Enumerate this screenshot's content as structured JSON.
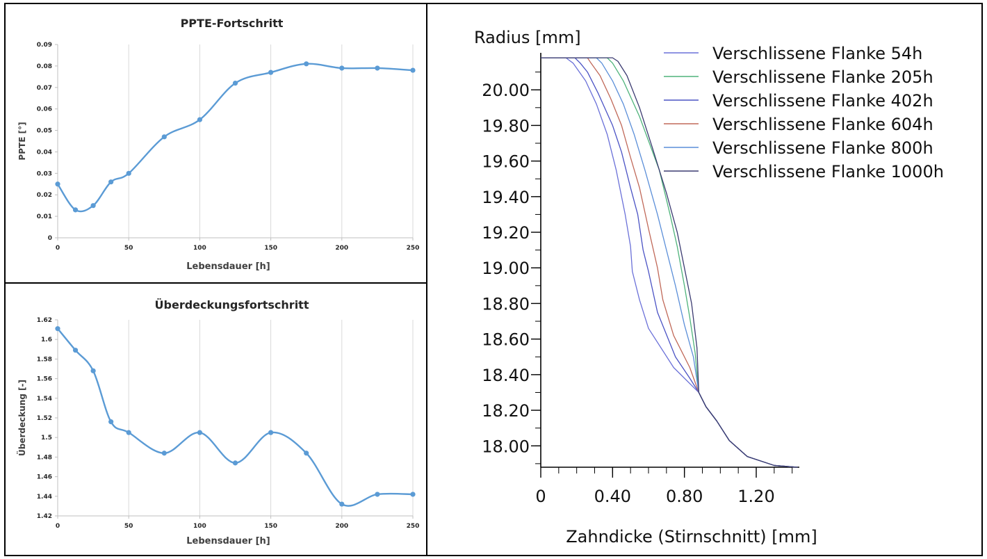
{
  "chart_data": [
    {
      "type": "line",
      "title": "PPTE-Fortschritt",
      "xlabel": "Lebensdauer [h]",
      "ylabel": "PPTE [°]",
      "xlim": [
        0,
        250
      ],
      "ylim": [
        0,
        0.09
      ],
      "x_ticks": [
        0,
        50,
        100,
        150,
        200,
        250
      ],
      "x_tick_labels": [
        "0",
        "50",
        "100",
        "150",
        "200",
        "250"
      ],
      "y_ticks": [
        0,
        0.01,
        0.02,
        0.03,
        0.04,
        0.05,
        0.06,
        0.07,
        0.08,
        0.09
      ],
      "y_tick_labels": [
        "0",
        "0.01",
        "0.02",
        "0.03",
        "0.04",
        "0.05",
        "0.06",
        "0.07",
        "0.08",
        "0.09"
      ],
      "grid": "vertical",
      "smooth": true,
      "markers": true,
      "color": "#5b9bd5",
      "series": [
        {
          "x": [
            0,
            12.5,
            25,
            37.5,
            50,
            75,
            100,
            125,
            150,
            175,
            200,
            225,
            250
          ],
          "values": [
            0.025,
            0.013,
            0.015,
            0.026,
            0.03,
            0.047,
            0.055,
            0.072,
            0.077,
            0.081,
            0.079,
            0.079,
            0.078
          ]
        }
      ]
    },
    {
      "type": "line",
      "title": "Überdeckungsfortschritt",
      "xlabel": "Lebensdauer [h]",
      "ylabel": "Überdeckung [-]",
      "xlim": [
        0,
        250
      ],
      "ylim": [
        1.42,
        1.62
      ],
      "x_ticks": [
        0,
        50,
        100,
        150,
        200,
        250
      ],
      "x_tick_labels": [
        "0",
        "50",
        "100",
        "150",
        "200",
        "250"
      ],
      "y_ticks": [
        1.42,
        1.44,
        1.46,
        1.48,
        1.5,
        1.52,
        1.54,
        1.56,
        1.58,
        1.6,
        1.62
      ],
      "y_tick_labels": [
        "1.42",
        "1.44",
        "1.46",
        "1.48",
        "1.5",
        "1.52",
        "1.54",
        "1.56",
        "1.58",
        "1.6",
        "1.62"
      ],
      "grid": "vertical",
      "smooth": true,
      "markers": true,
      "color": "#5b9bd5",
      "series": [
        {
          "x": [
            0,
            12.5,
            25,
            37.5,
            50,
            75,
            100,
            125,
            150,
            175,
            200,
            225,
            250
          ],
          "values": [
            1.611,
            1.589,
            1.568,
            1.516,
            1.505,
            1.484,
            1.505,
            1.474,
            1.505,
            1.484,
            1.432,
            1.442,
            1.442
          ]
        }
      ]
    },
    {
      "type": "line",
      "title": "",
      "xlabel": "Zahndicke (Stirnschnitt) [mm]",
      "ylabel": "Radius [mm]",
      "xlim": [
        0,
        1.44
      ],
      "ylim": [
        17.88,
        20.2
      ],
      "x_ticks": [
        0,
        0.4,
        0.8,
        1.2
      ],
      "x_tick_labels": [
        "0",
        "0.40",
        "0.80",
        "1.20"
      ],
      "x_minor_step": 0.1,
      "y_ticks": [
        18.0,
        18.2,
        18.4,
        18.6,
        18.8,
        19.0,
        19.2,
        19.4,
        19.6,
        19.8,
        20.0
      ],
      "y_tick_labels": [
        "18.00",
        "18.20",
        "18.40",
        "18.60",
        "18.80",
        "19.00",
        "19.20",
        "19.40",
        "19.60",
        "19.80",
        "20.00"
      ],
      "y_minor_step": 0.1,
      "grid": "off",
      "legend_position": "top-right",
      "smooth": false,
      "markers": false,
      "series": [
        {
          "name": "Verschlissene Flanke 54h",
          "color": "#6a70d8",
          "x": [
            1.43,
            1.3,
            1.15,
            1.05,
            0.98,
            0.92,
            0.88,
            0.74,
            0.6,
            0.55,
            0.51,
            0.5,
            0.47,
            0.42,
            0.37,
            0.31,
            0.25,
            0.18,
            0.14,
            0
          ],
          "y": [
            17.88,
            17.89,
            17.94,
            18.03,
            18.14,
            18.22,
            18.3,
            18.44,
            18.66,
            18.82,
            18.98,
            19.12,
            19.3,
            19.55,
            19.75,
            19.92,
            20.05,
            20.15,
            20.18,
            20.18
          ]
        },
        {
          "name": "Verschlissene Flanke 205h",
          "color": "#4eb37a",
          "x": [
            1.43,
            1.3,
            1.15,
            1.05,
            0.98,
            0.92,
            0.88,
            0.86,
            0.83,
            0.8,
            0.76,
            0.72,
            0.66,
            0.55,
            0.46,
            0.4,
            0.37,
            0
          ],
          "y": [
            17.88,
            17.89,
            17.94,
            18.03,
            18.14,
            18.22,
            18.3,
            18.52,
            18.72,
            18.9,
            19.12,
            19.3,
            19.55,
            19.85,
            20.05,
            20.15,
            20.18,
            20.18
          ]
        },
        {
          "name": "Verschlissene Flanke 402h",
          "color": "#4a52c4",
          "x": [
            1.43,
            1.3,
            1.15,
            1.05,
            0.98,
            0.92,
            0.88,
            0.83,
            0.75,
            0.65,
            0.6,
            0.57,
            0.54,
            0.5,
            0.45,
            0.4,
            0.32,
            0.26,
            0.22,
            0.19,
            0
          ],
          "y": [
            17.88,
            17.89,
            17.94,
            18.03,
            18.14,
            18.22,
            18.3,
            18.38,
            18.5,
            18.75,
            18.98,
            19.1,
            19.3,
            19.45,
            19.65,
            19.8,
            19.98,
            20.1,
            20.15,
            20.18,
            20.18
          ]
        },
        {
          "name": "Verschlissene Flanke 604h",
          "color": "#c06858",
          "x": [
            1.43,
            1.3,
            1.15,
            1.05,
            0.98,
            0.92,
            0.88,
            0.83,
            0.74,
            0.68,
            0.65,
            0.6,
            0.55,
            0.5,
            0.45,
            0.39,
            0.33,
            0.28,
            0.26,
            0
          ],
          "y": [
            17.88,
            17.89,
            17.94,
            18.03,
            18.14,
            18.22,
            18.3,
            18.44,
            18.62,
            18.82,
            19.0,
            19.22,
            19.45,
            19.62,
            19.8,
            19.95,
            20.08,
            20.15,
            20.18,
            20.18
          ]
        },
        {
          "name": "Verschlissene Flanke 800h",
          "color": "#5a8ed8",
          "x": [
            1.43,
            1.3,
            1.15,
            1.05,
            0.98,
            0.92,
            0.88,
            0.85,
            0.8,
            0.75,
            0.7,
            0.65,
            0.58,
            0.52,
            0.46,
            0.4,
            0.34,
            0.31,
            0
          ],
          "y": [
            17.88,
            17.89,
            17.94,
            18.03,
            18.14,
            18.22,
            18.3,
            18.5,
            18.68,
            18.9,
            19.1,
            19.3,
            19.55,
            19.75,
            19.92,
            20.05,
            20.15,
            20.18,
            20.18
          ]
        },
        {
          "name": "Verschlissene Flanke 1000h",
          "color": "#3a3a70",
          "x": [
            1.43,
            1.3,
            1.15,
            1.05,
            0.98,
            0.92,
            0.88,
            0.87,
            0.84,
            0.8,
            0.76,
            0.7,
            0.62,
            0.55,
            0.48,
            0.43,
            0.4,
            0
          ],
          "y": [
            17.88,
            17.89,
            17.94,
            18.03,
            18.14,
            18.22,
            18.3,
            18.55,
            18.8,
            19.0,
            19.2,
            19.42,
            19.68,
            19.9,
            20.08,
            20.16,
            20.18,
            20.18
          ]
        }
      ]
    }
  ]
}
